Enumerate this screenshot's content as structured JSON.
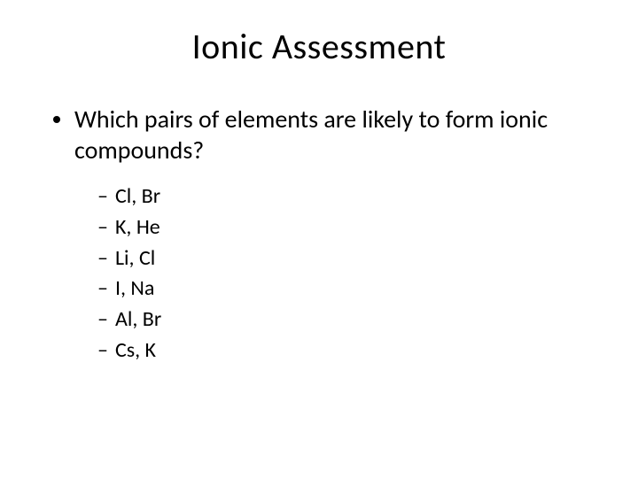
{
  "slide": {
    "title": "Ionic Assessment",
    "title_fontsize": 40,
    "title_color": "#000000",
    "background_color": "#ffffff",
    "question": "Which pairs of elements are likely to form ionic compounds?",
    "question_fontsize": 28,
    "options": [
      "Cl, Br",
      "K, He",
      "Li, Cl",
      "I, Na",
      "Al, Br",
      "Cs, K"
    ],
    "option_fontsize": 24,
    "bullet_color": "#000000",
    "dash": "–"
  }
}
